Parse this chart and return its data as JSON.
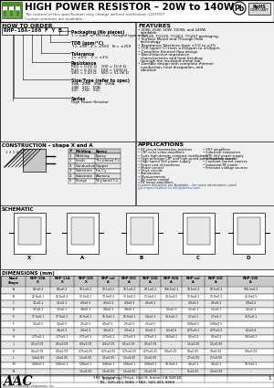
{
  "title": "HIGH POWER RESISTOR – 20W to 140W",
  "subtitle": "The content of this specification may change without notification 12/07/07",
  "subtitle2": "Custom solutions are available.",
  "how_to_order_title": "HOW TO ORDER",
  "part_number": "RHP-10A-100 F Y B",
  "features_title": "FEATURES",
  "features": [
    "20W, 25W, 50W, 100W, and 140W available",
    "TO126, TO220, TO263, TO247 packaging",
    "Surface Mount and Through Hole technology",
    "Resistance Tolerance from ±5% to ±1%",
    "TCR (ppm/°C) from ±250ppm to ±50ppm",
    "Complete thermal flow design",
    "Non-inductive impedance characteristics and heat bending through the insulated metal tab",
    "Durable design with complete thermal conduction, heat dissipation, and vibration"
  ],
  "applications_title": "APPLICATIONS",
  "applications_col1": [
    "RF circuit termination resistors",
    "CRT color video amplifiers",
    "Suite high-density compact installations",
    "High precision CRT and high speed pulse handling circuit",
    "High speed 5kV power supply",
    "Power unit of machines",
    "Motor control",
    "Drive circuits",
    "Automotive",
    "Measurements",
    "AC motor control",
    "RF linear amplifiers"
  ],
  "applications_col2": [
    "VHF amplifiers",
    "Industrial computers",
    "IPM, 5kV power supply",
    "Volt power sources",
    "Constant current sources",
    "Industrial RF power",
    "Precision voltage sources"
  ],
  "construction_title": "CONSTRUCTION – shape X and A",
  "schematic_title": "SCHEMATIC",
  "dimensions_title": "DIMENSIONS (mm)",
  "dim_col_headers": [
    "Band\nShape",
    "RHP-10A\nX",
    "RHP-11A\nX",
    "RHP-10C\nX",
    "RHP-col\nA",
    "RHP-50C\nA",
    "RHP-10D\nA",
    "RHP-50A\nA",
    "RHP-col\nA",
    "RHP-10C\nA",
    "RHP-100\nA"
  ],
  "dim_col_sub": [
    "",
    "B",
    "B",
    "C",
    "A",
    "C",
    "D",
    "A",
    "A",
    "C",
    "A"
  ],
  "dim_rows": [
    [
      "A",
      "8.5±0.2",
      "8.5±0.2",
      "10.1±0.2",
      "10.1±0.2",
      "10.1±0.2",
      "10.1±0.2",
      "166.0±0.2",
      "10.6±0.2",
      "10.6±0.2",
      "166.0±0.2"
    ],
    [
      "B",
      "12.0±0.2",
      "12.0±0.2",
      "13.0±0.2",
      "13.0±0.2",
      "13.0±0.2",
      "13.3±0.2",
      "20.0±0.5",
      "13.0±0.2",
      "13.0±0.2",
      "20.0±0.5"
    ],
    [
      "C",
      "3.1±0.1",
      "3.1±0.1",
      "4.9±0.2",
      "4.9±0.2",
      "4.9±0.2",
      "4.5±0.2",
      "–",
      "4.9±0.2",
      "4.5±0.2",
      "4.9±0.2"
    ],
    [
      "D",
      "3.7±0.1",
      "3.7±0.1",
      "3.8±0.1",
      "3.8±0.1",
      "3.8±0.1",
      "–",
      "3.2±0.1",
      "1.5±0.1",
      "1.5±0.1",
      "3.2±0.1"
    ],
    [
      "E",
      "17.0±0.1",
      "17.0±0.1",
      "16.0±0.1",
      "16.0±0.1",
      "16.0±0.1",
      "5.0±0.1",
      "14.5±0.1",
      "2.7±0.1",
      "2.7±0.1",
      "14.5±0.1"
    ],
    [
      "F",
      "3.2±0.5",
      "3.2±0.5",
      "2.5±0.5",
      "4.0±0.5",
      "2.5±0.5",
      "2.5±0.5",
      "–",
      "5.08±0.5",
      "5.08±0.5",
      "–"
    ],
    [
      "G",
      "–",
      "3.6±0.2",
      "3.0±0.2",
      "3.0±0.2",
      "3.0±0.2",
      "3.3±0.2",
      "6.1±0.6",
      "0.75±0.2",
      "0.75±0.2",
      "6.1±0.6"
    ],
    [
      "H",
      "1.75±0.1",
      "1.75±0.1",
      "2.75±0.1",
      "2.75±0.2",
      "2.75±0.2",
      "2.75±0.2",
      "3.63±0.2",
      "0.5±0.2",
      "0.5±0.2",
      "3.63±0.2"
    ],
    [
      "J",
      "0.5±0.05",
      "0.5±0.05",
      "0.9±0.05",
      "0.9±0.05",
      "0.5±0.05",
      "0.5±0.05",
      "–",
      "1.5±0.05",
      "1.5±0.05",
      "–"
    ],
    [
      "K",
      "0.5±0.05",
      "0.5±0.05",
      "0.75±0.05",
      "0.75±0.05",
      "0.75±0.05",
      "0.75±0.05",
      "0.9±0.05",
      "19±0.05",
      "19±0.05",
      "0.9±0.05"
    ],
    [
      "L",
      "1.4±0.05",
      "1.4±0.05",
      "1.5±0.05",
      "1.5±0.05",
      "1.5±0.05",
      "1.5±0.05",
      "–",
      "2.7±0.05",
      "2.7±0.05",
      "–"
    ],
    [
      "M",
      "5.08±0.1",
      "5.08±0.1",
      "5.08±0.1",
      "5.08±0.1",
      "5.08±0.1",
      "5.08±0.1",
      "10.9±0.1",
      "3.6±0.1",
      "3.6±0.1",
      "10.9±0.1"
    ],
    [
      "N",
      "–",
      "–",
      "1.5±0.05",
      "1.5±0.05",
      "1.5±0.05",
      "1.5±0.05",
      "–",
      "15±0.05",
      "2.0±0.05",
      "–"
    ],
    [
      "P",
      "–",
      "–",
      "–",
      "16.0±0.5",
      "–",
      "–",
      "–",
      "–",
      "–",
      "–"
    ]
  ],
  "footer_address": "155 Technology Drive, Unit H, Irvine, CA 92618",
  "footer_tel": "TEL: 949-453-9888 • FAX: 949-453-9889",
  "logo_green": "#4a8c2a",
  "bg_color": "#ffffff",
  "section_bg": "#f0f0f0",
  "table_header_bg": "#c8c8c8",
  "table_alt_bg": "#e8e8e8"
}
